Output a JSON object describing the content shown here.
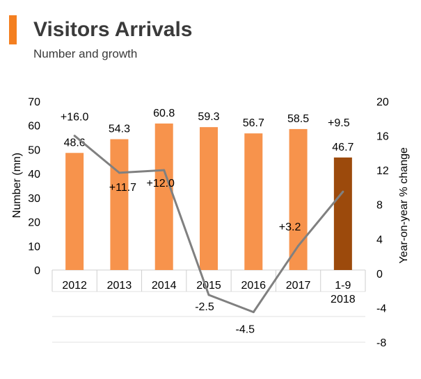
{
  "header": {
    "title": "Visitors Arrivals",
    "subtitle": "Number and growth"
  },
  "chart_data": {
    "type": "bar",
    "categories": [
      [
        "2012"
      ],
      [
        "2013"
      ],
      [
        "2014"
      ],
      [
        "2015"
      ],
      [
        "2016"
      ],
      [
        "2017"
      ],
      [
        "1-9",
        "2018"
      ]
    ],
    "series": [
      {
        "axis": "left",
        "type": "bar",
        "values": [
          48.6,
          54.3,
          60.8,
          59.3,
          56.7,
          58.5,
          46.7
        ],
        "labels": [
          "48.6",
          "54.3",
          "60.8",
          "59.3",
          "56.7",
          "58.5",
          "46.7"
        ],
        "colors": [
          "#f7934c",
          "#f7934c",
          "#f7934c",
          "#f7934c",
          "#f7934c",
          "#f7934c",
          "#9c4a0c"
        ]
      },
      {
        "axis": "right",
        "type": "line",
        "values": [
          16.0,
          11.7,
          12.0,
          -2.5,
          -4.5,
          3.2,
          9.5
        ],
        "labels": [
          "+16.0",
          "+11.7",
          "+12.0",
          "-2.5",
          "-4.5",
          "+3.2",
          "+9.5"
        ],
        "color": "#808080"
      }
    ],
    "ylabel": "Number (mn)",
    "y2label": "Year-on-year % change",
    "ylim": [
      0,
      70
    ],
    "yticks": [
      "0",
      "10",
      "20",
      "30",
      "40",
      "50",
      "60",
      "70"
    ],
    "y2lim": [
      -8,
      20
    ],
    "y2ticks": [
      "-8",
      "-4",
      "0",
      "4",
      "8",
      "12",
      "16",
      "20"
    ],
    "grid": false
  }
}
